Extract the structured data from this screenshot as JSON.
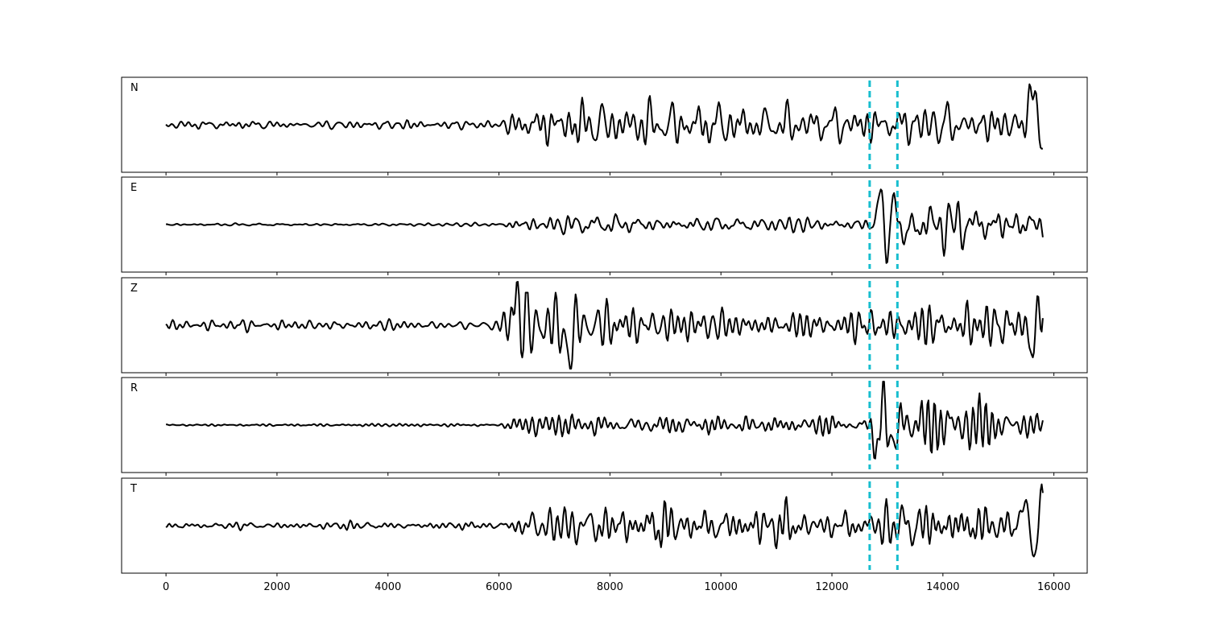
{
  "chart_data": {
    "type": "line",
    "title": "",
    "xlabel": "",
    "ylabel": "",
    "xlim": [
      -800,
      16600
    ],
    "xticks": [
      0,
      2000,
      4000,
      6000,
      8000,
      10000,
      12000,
      14000,
      16000
    ],
    "xtick_labels": [
      "0",
      "2000",
      "4000",
      "6000",
      "8000",
      "10000",
      "12000",
      "14000",
      "16000"
    ],
    "x_range": [
      0,
      15800
    ],
    "markers": [
      12680,
      13180
    ],
    "colors": {
      "trace": "#000000",
      "marker": "#17becf"
    },
    "grid": false,
    "panels": [
      {
        "label": "N",
        "envelope": [
          [
            0,
            0.08
          ],
          [
            3000,
            0.08
          ],
          [
            6000,
            0.1
          ],
          [
            6300,
            0.3
          ],
          [
            7000,
            0.45
          ],
          [
            8000,
            0.45
          ],
          [
            9000,
            0.4
          ],
          [
            12600,
            0.35
          ],
          [
            13000,
            0.3
          ],
          [
            13300,
            0.45
          ],
          [
            14000,
            0.55
          ],
          [
            14500,
            0.5
          ],
          [
            15400,
            0.3
          ]
        ],
        "events": [
          [
            15650,
            0.95,
            110
          ],
          [
            15780,
            -0.9,
            80
          ]
        ]
      },
      {
        "label": "E",
        "envelope": [
          [
            0,
            0.02
          ],
          [
            6000,
            0.03
          ],
          [
            6300,
            0.15
          ],
          [
            7500,
            0.2
          ],
          [
            9000,
            0.15
          ],
          [
            12500,
            0.12
          ],
          [
            12700,
            0.2
          ],
          [
            13400,
            0.45
          ],
          [
            14500,
            0.45
          ],
          [
            15800,
            0.35
          ]
        ],
        "events": [
          [
            12880,
            0.9,
            70
          ],
          [
            12990,
            -1.0,
            60
          ],
          [
            13120,
            0.8,
            70
          ],
          [
            13300,
            -0.4,
            80
          ]
        ]
      },
      {
        "label": "Z",
        "envelope": [
          [
            0,
            0.1
          ],
          [
            5500,
            0.12
          ],
          [
            6000,
            0.3
          ],
          [
            6300,
            0.95
          ],
          [
            7200,
            0.9
          ],
          [
            7700,
            0.7
          ],
          [
            8500,
            0.55
          ],
          [
            9500,
            0.45
          ],
          [
            10200,
            0.3
          ],
          [
            12000,
            0.3
          ],
          [
            13000,
            0.35
          ],
          [
            14000,
            0.4
          ],
          [
            15500,
            0.5
          ]
        ],
        "events": [
          [
            6310,
            1.0,
            50
          ],
          [
            7250,
            -0.95,
            60
          ],
          [
            15620,
            -0.7,
            60
          ],
          [
            15770,
            0.6,
            60
          ]
        ]
      },
      {
        "label": "R",
        "envelope": [
          [
            0,
            0.02
          ],
          [
            6000,
            0.03
          ],
          [
            6300,
            0.2
          ],
          [
            8000,
            0.25
          ],
          [
            10000,
            0.2
          ],
          [
            12600,
            0.15
          ],
          [
            12800,
            0.25
          ],
          [
            13300,
            0.5
          ],
          [
            14500,
            0.5
          ],
          [
            15800,
            0.15
          ]
        ],
        "events": [
          [
            12800,
            -0.75,
            60
          ],
          [
            12930,
            1.0,
            55
          ],
          [
            13030,
            -0.6,
            60
          ],
          [
            13150,
            -0.6,
            60
          ],
          [
            13250,
            0.4,
            70
          ]
        ]
      },
      {
        "label": "T",
        "envelope": [
          [
            0,
            0.08
          ],
          [
            6000,
            0.08
          ],
          [
            6300,
            0.3
          ],
          [
            7500,
            0.5
          ],
          [
            9000,
            0.45
          ],
          [
            12000,
            0.4
          ],
          [
            13000,
            0.5
          ],
          [
            14000,
            0.5
          ],
          [
            15400,
            0.35
          ]
        ],
        "events": [
          [
            15500,
            0.6,
            80
          ],
          [
            15660,
            -0.85,
            70
          ],
          [
            15780,
            0.8,
            60
          ]
        ]
      }
    ]
  }
}
